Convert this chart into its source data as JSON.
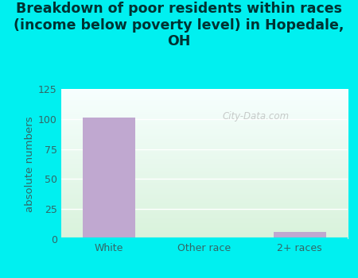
{
  "title": "Breakdown of poor residents within races\n(income below poverty level) in Hopedale,\nOH",
  "categories": [
    "White",
    "Other race",
    "2+ races"
  ],
  "values": [
    101,
    0,
    6
  ],
  "bar_color": "#c0a8d0",
  "ylabel": "absolute numbers",
  "ylim": [
    0,
    125
  ],
  "yticks": [
    0,
    25,
    50,
    75,
    100,
    125
  ],
  "bg_color": "#00f0f0",
  "plot_bg_topleft": "#d8f0d8",
  "plot_bg_bottomright": "#f8feff",
  "title_color": "#003333",
  "tick_color": "#336666",
  "watermark": "City-Data.com",
  "title_fontsize": 12.5,
  "label_fontsize": 9.5,
  "tick_fontsize": 9
}
